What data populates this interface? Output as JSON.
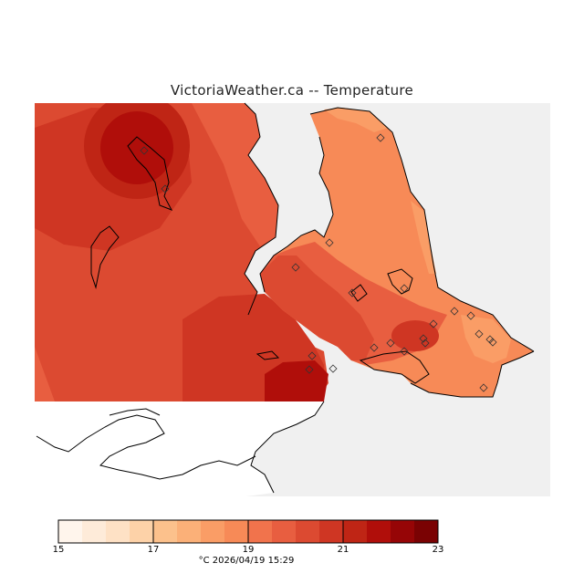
{
  "title": "VictoriaWeather.ca -- Temperature",
  "timestamp": "°C  2026/04/19 15:29",
  "colors": {
    "sea": "#f0f0f0",
    "coast": "#000000",
    "land_missing": "#ffffff",
    "scale": [
      "#fff5ec",
      "#feebd9",
      "#fee1c5",
      "#fdd2a8",
      "#fcc18c",
      "#fbb078",
      "#fa9d66",
      "#f78a57",
      "#f1734c",
      "#e85e40",
      "#dc4a31",
      "#cf3623",
      "#bf2515",
      "#b00e0a",
      "#960506",
      "#7a0203"
    ]
  },
  "legend": {
    "min": 15,
    "max": 23,
    "ticks": [
      "15",
      "17",
      "19",
      "21",
      "23"
    ]
  },
  "stations_icon": "diamond-station-icon"
}
